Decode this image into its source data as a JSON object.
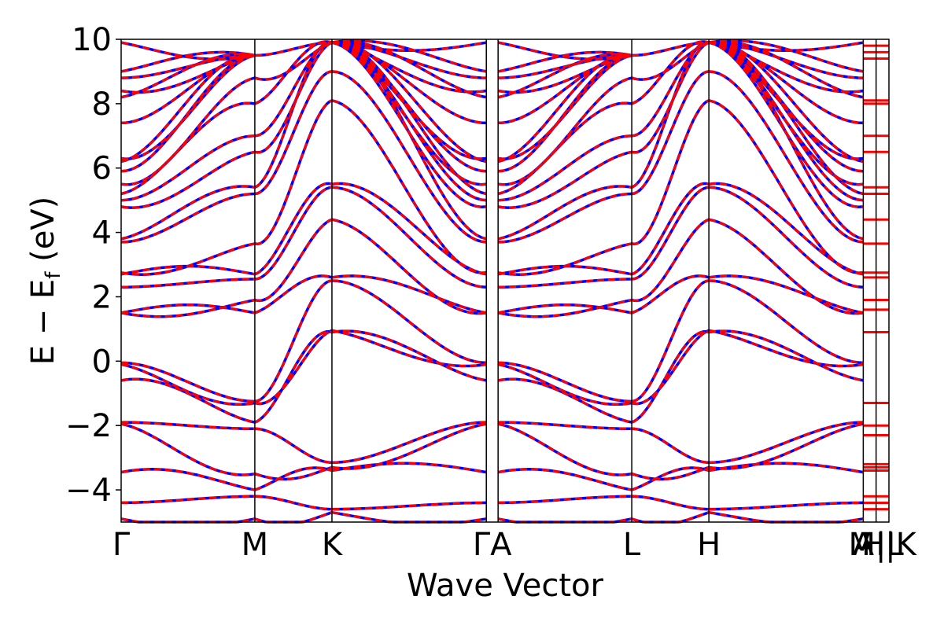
{
  "chart_data": {
    "type": "line",
    "xlabel": "Wave Vector",
    "ylabel": "E − E",
    "ylabel_sub": "f",
    "ylabel_unit": " (eV)",
    "ylim": [
      -5,
      10
    ],
    "yticks": [
      -4,
      -2,
      0,
      2,
      4,
      6,
      8,
      10
    ],
    "ytick_labels": [
      "−4",
      "−2",
      "0",
      "2",
      "4",
      "6",
      "8",
      "10"
    ],
    "kpath": [
      {
        "label": "Γ",
        "x": 0.0
      },
      {
        "label": "M",
        "x": 1.0
      },
      {
        "label": "K",
        "x": 1.577
      },
      {
        "label": "Γ",
        "x": 2.732
      },
      {
        "label": "A",
        "x": 2.82
      },
      {
        "label": "L",
        "x": 3.82
      },
      {
        "label": "H",
        "x": 4.397
      },
      {
        "label": "A",
        "x": 5.552
      },
      {
        "label": "L",
        "x": 5.648
      },
      {
        "label": "M",
        "x": 5.648
      },
      {
        "label": "H",
        "x": 5.744
      },
      {
        "label": "K",
        "x": 5.744
      }
    ],
    "xtick_labels_drawn": [
      "Γ",
      "M",
      "K",
      "ΓA",
      "L",
      "H",
      "A",
      "M|L",
      "H|K"
    ],
    "series": [
      {
        "style": "solid",
        "color": "#0000ff"
      },
      {
        "style": "dashed",
        "color": "#ff0000"
      }
    ],
    "bands_at_gamma_eV": [
      -4.9,
      -4.4,
      -3.45,
      -1.95,
      -1.9,
      -0.6,
      -0.1,
      -0.05,
      1.5,
      1.5,
      2.3,
      2.7,
      2.75,
      3.7,
      3.8,
      4.8,
      5.0,
      5.2,
      5.5,
      5.9,
      6.2,
      6.3,
      7.4,
      8.2,
      8.4,
      8.8,
      9.0,
      9.9
    ],
    "bands_at_M_eV": [
      -4.9,
      -4.2,
      -4.0,
      -3.5,
      -2.1,
      -1.9,
      -1.3,
      -1.25,
      1.5,
      1.9,
      2.55,
      2.7,
      3.65,
      5.2,
      5.4,
      6.5,
      7.0,
      8.0,
      8.8,
      9.5
    ],
    "bands_at_K_eV": [
      -4.7,
      -4.6,
      -3.4,
      -3.3,
      -3.15,
      0.9,
      0.95,
      2.5,
      2.6,
      4.4,
      5.4,
      5.5,
      8.1,
      9.0,
      9.9
    ],
    "bands_at_H_eV": [
      -4.7,
      -4.6,
      -3.4,
      -3.3,
      -3.15,
      0.9,
      0.95,
      2.5,
      2.6,
      4.4,
      5.4,
      5.5,
      8.1,
      9.0,
      9.9
    ],
    "flat_levels_right_panel_eV": [
      -4.6,
      -4.4,
      -4.2,
      -3.4,
      -3.3,
      -3.2,
      -2.3,
      -2.0,
      -1.3,
      0.9,
      1.6,
      1.9,
      2.6,
      2.75,
      3.65,
      4.4,
      5.2,
      5.4,
      6.5,
      7.0,
      8.0,
      8.1,
      9.4,
      9.6,
      9.8
    ]
  }
}
